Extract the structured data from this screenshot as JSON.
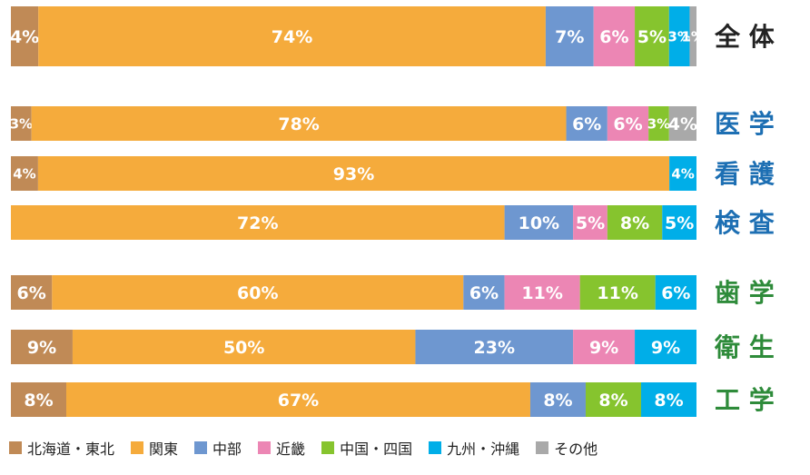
{
  "chart_data": {
    "type": "bar",
    "orientation": "horizontal",
    "stacked": true,
    "normalized_percent": true,
    "categories": [
      "全 体",
      "医 学",
      "看 護",
      "検 査",
      "歯 学",
      "衛 生",
      "工 学"
    ],
    "category_colors": [
      "#222222",
      "#1d6fb3",
      "#1d6fb3",
      "#1d6fb3",
      "#2e8b3a",
      "#2e8b3a",
      "#2e8b3a"
    ],
    "series": [
      {
        "name": "北海道・東北",
        "color": "#c08a56",
        "values": [
          4,
          3,
          4,
          0,
          6,
          9,
          8
        ]
      },
      {
        "name": "関東",
        "color": "#f5ab3c",
        "values": [
          74,
          78,
          93,
          72,
          60,
          50,
          67
        ]
      },
      {
        "name": "中部",
        "color": "#6e97d0",
        "values": [
          7,
          6,
          0,
          10,
          6,
          23,
          8
        ]
      },
      {
        "name": "近畿",
        "color": "#ec86b4",
        "values": [
          6,
          6,
          0,
          5,
          11,
          9,
          0
        ]
      },
      {
        "name": "中国・四国",
        "color": "#86c42e",
        "values": [
          5,
          3,
          0,
          8,
          11,
          0,
          8
        ]
      },
      {
        "name": "九州・沖縄",
        "color": "#00aee8",
        "values": [
          3,
          0,
          4,
          5,
          6,
          9,
          8
        ]
      },
      {
        "name": "その他",
        "color": "#a9a9a9",
        "values": [
          1,
          4,
          0,
          0,
          0,
          0,
          0
        ]
      }
    ],
    "value_suffix": "%",
    "legend_position": "bottom",
    "grid": false
  }
}
